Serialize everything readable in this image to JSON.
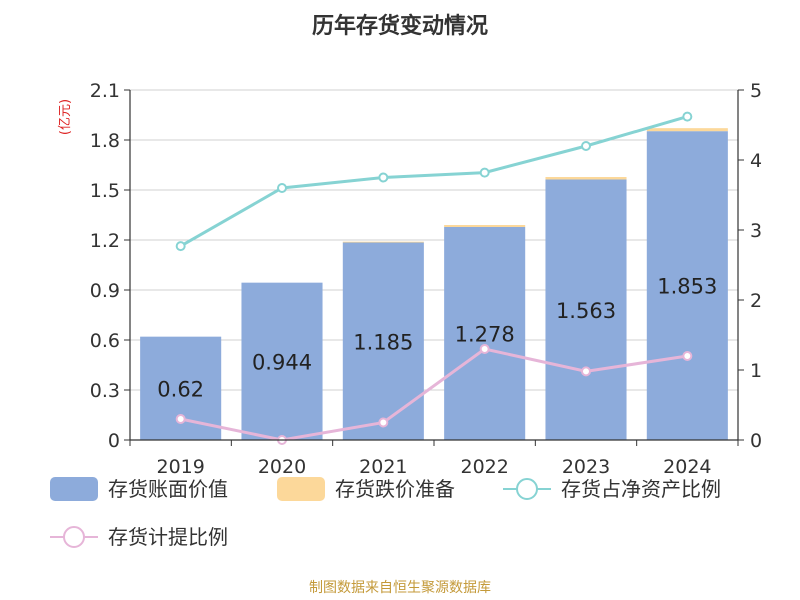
{
  "chart_data": {
    "type": "bar",
    "title": "历年存货变动情况",
    "unit_label": "(亿元)",
    "categories": [
      "2019",
      "2020",
      "2021",
      "2022",
      "2023",
      "2024"
    ],
    "y_left": {
      "min": 0,
      "max": 2.1,
      "ticks": [
        "0",
        "0.3",
        "0.6",
        "0.9",
        "1.2",
        "1.5",
        "1.8",
        "2.1"
      ]
    },
    "y_right": {
      "min": 0,
      "max": 5,
      "ticks": [
        "0",
        "1",
        "2",
        "3",
        "4",
        "5"
      ]
    },
    "grid": true,
    "legend_position": "bottom",
    "series": [
      {
        "name": "存货账面价值",
        "kind": "bar",
        "axis": "left",
        "color": "#8dabdb",
        "values": [
          0.62,
          0.944,
          1.185,
          1.278,
          1.563,
          1.853
        ],
        "labels": [
          "0.62",
          "0.944",
          "1.185",
          "1.278",
          "1.563",
          "1.853"
        ]
      },
      {
        "name": "存货跌价准备",
        "kind": "bar-stack",
        "axis": "left",
        "color": "#fcd89a",
        "values": [
          0.0,
          0.0,
          0.005,
          0.012,
          0.015,
          0.018
        ]
      },
      {
        "name": "存货占净资产比例",
        "kind": "line",
        "axis": "right",
        "color": "#86d3d3",
        "values": [
          2.77,
          3.6,
          3.75,
          3.82,
          4.2,
          4.62
        ]
      },
      {
        "name": "存货计提比例",
        "kind": "line",
        "axis": "right",
        "color": "#e6b5d8",
        "values": [
          0.3,
          0.0,
          0.25,
          1.3,
          0.98,
          1.2
        ]
      }
    ]
  },
  "footer": {
    "source": "制图数据来自恒生聚源数据库"
  }
}
